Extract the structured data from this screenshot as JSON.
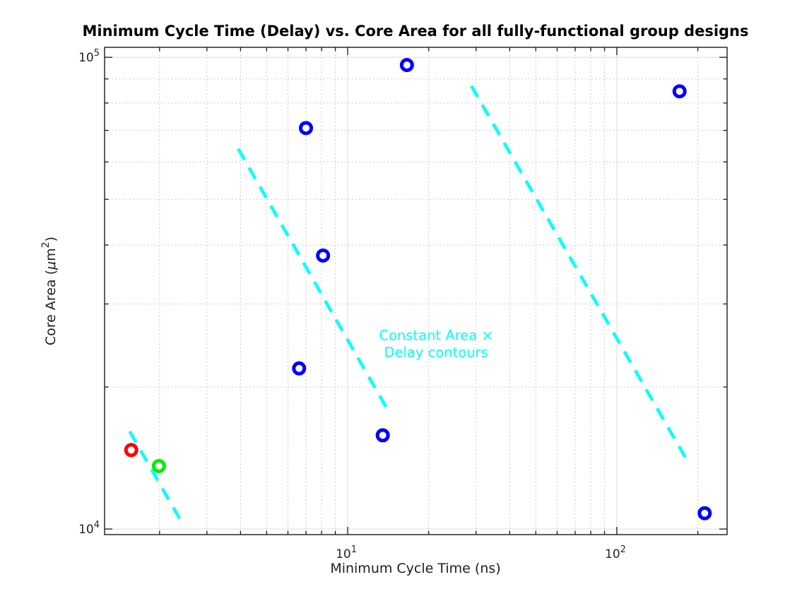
{
  "chart_data": {
    "type": "scatter",
    "title": "Minimum Cycle Time (Delay) vs. Core Area for all fully-functional group designs",
    "xlabel": "Minimum Cycle Time (ns)",
    "ylabel": "Core Area (μm²)",
    "ylabel_parts": {
      "pre": "Core Area (",
      "mu": "μ",
      "unit": "m",
      "exp": "2",
      "close": ")"
    },
    "xscale": "log",
    "yscale": "log",
    "xlim": [
      1.25,
      256.8
    ],
    "ylim": [
      9730,
      105000
    ],
    "grid": {
      "major": true,
      "minor": true,
      "legend": "none"
    },
    "x_ticks": [
      {
        "value": 10,
        "base": "10",
        "exp": "1"
      },
      {
        "value": 100,
        "base": "10",
        "exp": "2"
      }
    ],
    "y_ticks": [
      {
        "value": 10000,
        "base": "10",
        "exp": "4"
      },
      {
        "value": 100000,
        "base": "10",
        "exp": "5"
      }
    ],
    "x_minor_ticks": [
      2,
      3,
      4,
      5,
      6,
      7,
      8,
      9,
      20,
      30,
      40,
      50,
      60,
      70,
      80,
      90,
      200
    ],
    "y_minor_ticks": [
      20000,
      30000,
      40000,
      50000,
      60000,
      70000,
      80000,
      90000
    ],
    "series": [
      {
        "name": "group-designs-blue",
        "color": "#0000ff",
        "points": [
          [
            6.6,
            21900
          ],
          [
            7.0,
            70800
          ],
          [
            8.1,
            38000
          ],
          [
            13.5,
            15800
          ],
          [
            16.6,
            96300
          ],
          [
            171,
            84700
          ],
          [
            212,
            10800
          ]
        ]
      },
      {
        "name": "design-red",
        "color": "#ff0000",
        "points": [
          [
            1.57,
            14700
          ]
        ]
      },
      {
        "name": "design-green",
        "color": "#00ee00",
        "points": [
          [
            1.99,
            13600
          ]
        ]
      }
    ],
    "contours": {
      "color": "#00ffff",
      "style": "dashed",
      "area_delay_products": [
        25000,
        250000,
        2500000
      ],
      "segments": [
        {
          "from": [
            1.55,
            16100
          ],
          "to": [
            2.42,
            10330
          ]
        },
        {
          "from": [
            3.92,
            64000
          ],
          "to": [
            14.4,
            17500
          ]
        },
        {
          "from": [
            28.8,
            87000
          ],
          "to": [
            182,
            14000
          ]
        }
      ],
      "label_lines": [
        "Constant Area ×",
        "Delay contours"
      ],
      "label_anchor": [
        21.3,
        25500
      ]
    },
    "colors": {
      "axis": "#1a1a1a",
      "major_grid": "#e2e2e2",
      "minor_grid": "#bdbdbd",
      "marker_fill": "#ffffff",
      "annotation": "#00ffff"
    }
  }
}
